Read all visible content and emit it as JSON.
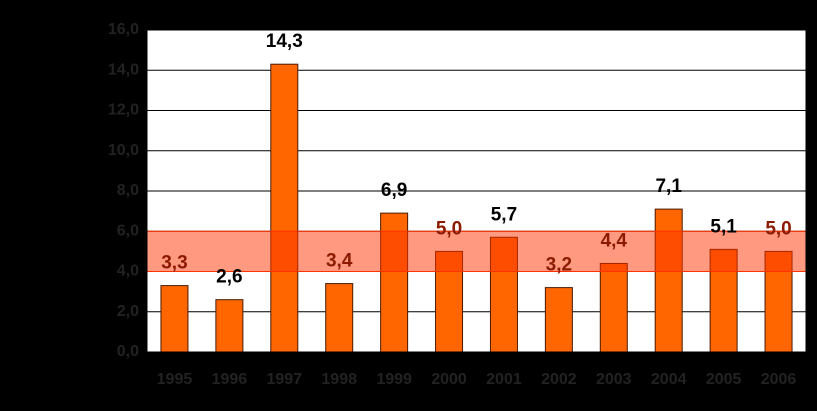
{
  "chart_data": {
    "type": "bar",
    "categories": [
      "1995",
      "1996",
      "1997",
      "1998",
      "1999",
      "2000",
      "2001",
      "2002",
      "2003",
      "2004",
      "2005",
      "2006"
    ],
    "values": [
      3.3,
      2.6,
      14.3,
      3.4,
      6.9,
      5.0,
      5.7,
      3.2,
      4.4,
      7.1,
      5.1,
      5.0
    ],
    "value_labels": [
      "3,3",
      "2,6",
      "14,3",
      "3,4",
      "6,9",
      "5,0",
      "5,7",
      "3,2",
      "4,4",
      "7,1",
      "5,1",
      "5,0"
    ],
    "color": "#ff6600",
    "ylim": [
      0,
      16
    ],
    "yticks": [
      {
        "value": 0,
        "label": "0,0"
      },
      {
        "value": 2,
        "label": "2,0"
      },
      {
        "value": 4,
        "label": "4,0"
      },
      {
        "value": 6,
        "label": "6,0"
      },
      {
        "value": 8,
        "label": "8,0"
      },
      {
        "value": 10,
        "label": "10,0"
      },
      {
        "value": 12,
        "label": "12,0"
      },
      {
        "value": 14,
        "label": "14,0"
      },
      {
        "value": 16,
        "label": "16,0"
      }
    ],
    "grid": true,
    "band": [
      4,
      6
    ],
    "band_color": "#ff3300"
  }
}
